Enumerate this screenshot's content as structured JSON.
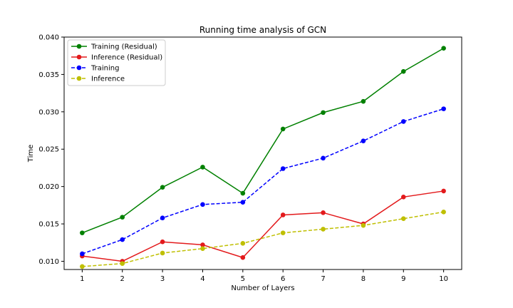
{
  "chart_data": {
    "type": "line",
    "title": "Running time analysis of GCN",
    "xlabel": "Number of Layers",
    "ylabel": "Time",
    "x": [
      1,
      2,
      3,
      4,
      5,
      6,
      7,
      8,
      9,
      10
    ],
    "xlim": [
      0.55,
      10.45
    ],
    "ylim": [
      0.0089,
      0.04
    ],
    "yticks": [
      "0.010",
      "0.015",
      "0.020",
      "0.025",
      "0.030",
      "0.035",
      "0.040"
    ],
    "ytick_values": [
      0.01,
      0.015,
      0.02,
      0.025,
      0.03,
      0.035,
      0.04
    ],
    "grid": false,
    "legend_position": "top-left",
    "series": [
      {
        "name": "Training (Residual)",
        "color": "#008000",
        "dashed": false,
        "values": [
          0.0138,
          0.0159,
          0.0199,
          0.0226,
          0.0191,
          0.0277,
          0.0299,
          0.0314,
          0.0354,
          0.0385
        ]
      },
      {
        "name": "Inference (Residual)",
        "color": "#e31a1c",
        "dashed": false,
        "values": [
          0.0107,
          0.01,
          0.0126,
          0.0122,
          0.0105,
          0.0162,
          0.0165,
          0.015,
          0.0186,
          0.0194
        ]
      },
      {
        "name": "Training",
        "color": "#0000ff",
        "dashed": true,
        "values": [
          0.011,
          0.0129,
          0.0158,
          0.0176,
          0.0179,
          0.0224,
          0.0238,
          0.0261,
          0.0287,
          0.0304
        ]
      },
      {
        "name": "Inference",
        "color": "#bfbf00",
        "dashed": true,
        "values": [
          0.0093,
          0.0097,
          0.0111,
          0.0117,
          0.0124,
          0.0138,
          0.0143,
          0.0148,
          0.0157,
          0.0166
        ]
      }
    ]
  }
}
